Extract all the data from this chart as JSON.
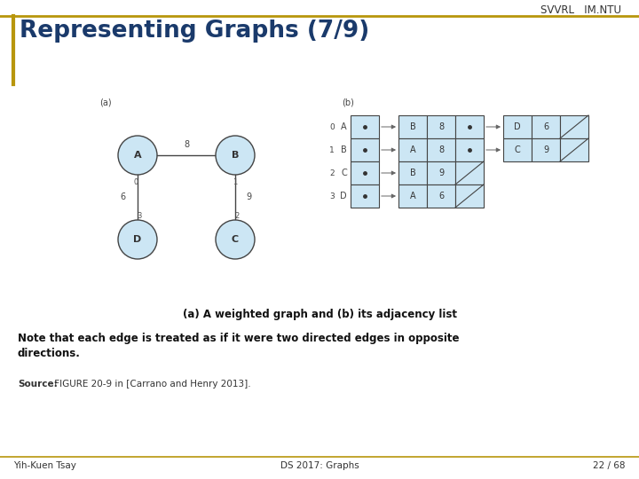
{
  "title": "Representing Graphs (7/9)",
  "header_right": "SVVRL   IM.NTU",
  "gold_line_color": "#B8960C",
  "bg_color": "#ffffff",
  "title_color": "#1a3a6b",
  "node_fill": "#cce6f4",
  "node_edge": "#444444",
  "caption": "(a) A weighted graph and (b) its adjacency list",
  "note": "Note that each edge is treated as if it were two directed edges in opposite\ndirections.",
  "source_bold": "Source:",
  "source_rest": " FIGURE 20-9 in [Carrano and Henry 2013].",
  "footer_left": "Yih-Kuen Tsay",
  "footer_mid": "DS 2017: Graphs",
  "footer_right": "22 / 68",
  "adj_rows": [
    {
      "idx": "0",
      "label": "A",
      "nodes": [
        [
          "B",
          "8",
          true
        ],
        [
          "D",
          "6",
          false
        ]
      ]
    },
    {
      "idx": "1",
      "label": "B",
      "nodes": [
        [
          "A",
          "8",
          true
        ],
        [
          "C",
          "9",
          false
        ]
      ]
    },
    {
      "idx": "2",
      "label": "C",
      "nodes": [
        [
          "B",
          "9",
          false
        ]
      ]
    },
    {
      "idx": "3",
      "label": "D",
      "nodes": [
        [
          "A",
          "6",
          false
        ]
      ]
    }
  ]
}
